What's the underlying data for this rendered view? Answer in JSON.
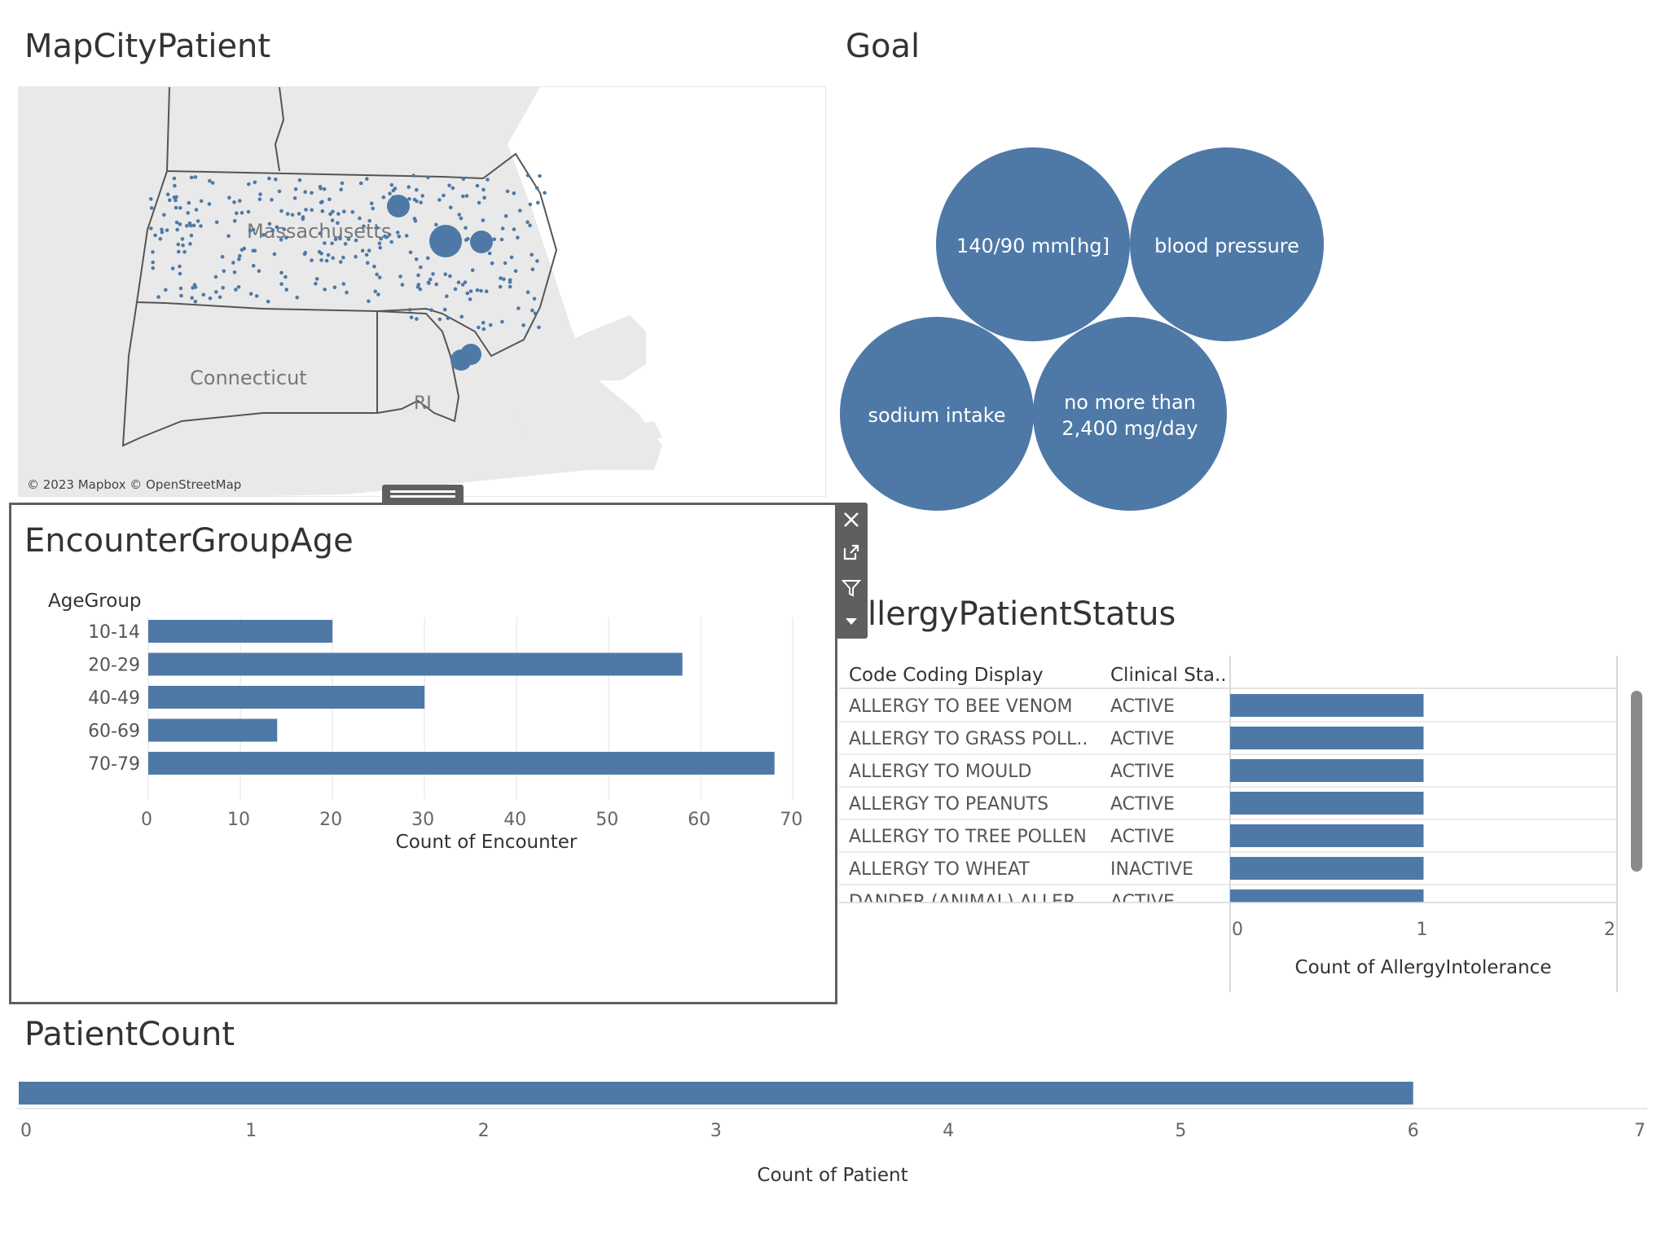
{
  "map": {
    "title": "MapCityPatient",
    "labels": {
      "ma": "Massachusetts",
      "ct": "Connecticut",
      "ri": "RI"
    },
    "attribution": "© 2023 Mapbox © OpenStreetMap"
  },
  "goal": {
    "title": "Goal",
    "bubbles": [
      "140/90 mm[hg]",
      "blood pressure",
      "sodium intake",
      "no more than",
      "2,400 mg/day"
    ]
  },
  "encounter": {
    "title": "EncounterGroupAge",
    "row_header": "AgeGroup",
    "xlabel": "Count of Encounter"
  },
  "allergy": {
    "title": "AllergyPatientStatus",
    "title_visible": "llergyPatientStatus",
    "col1_header": "Code Coding Display",
    "col2_header": "Clinical Sta..",
    "xlabel": "Count of AllergyIntolerance"
  },
  "patient": {
    "title": "PatientCount",
    "xlabel": "Count of Patient"
  },
  "chart_data": [
    {
      "type": "bar",
      "title": "EncounterGroupAge",
      "orientation": "horizontal",
      "categories": [
        "10-14",
        "20-29",
        "40-49",
        "60-69",
        "70-79"
      ],
      "values": [
        20,
        58,
        30,
        14,
        68
      ],
      "xlabel": "Count of Encounter",
      "ylabel": "AgeGroup",
      "xlim": [
        0,
        70
      ],
      "ticks": [
        0,
        10,
        20,
        30,
        40,
        50,
        60,
        70
      ]
    },
    {
      "type": "bar",
      "title": "AllergyPatientStatus",
      "orientation": "horizontal",
      "rows": [
        {
          "display": "ALLERGY TO BEE VENOM",
          "status": "ACTIVE",
          "value": 1
        },
        {
          "display": "ALLERGY TO GRASS POLL..",
          "status": "ACTIVE",
          "value": 1
        },
        {
          "display": "ALLERGY TO MOULD",
          "status": "ACTIVE",
          "value": 1
        },
        {
          "display": "ALLERGY TO PEANUTS",
          "status": "ACTIVE",
          "value": 1
        },
        {
          "display": "ALLERGY TO TREE POLLEN",
          "status": "ACTIVE",
          "value": 1
        },
        {
          "display": "ALLERGY TO WHEAT",
          "status": "INACTIVE",
          "value": 1
        },
        {
          "display": "DANDER (ANIMAL) ALLER..",
          "status": "ACTIVE",
          "value": 1
        }
      ],
      "xlabel": "Count of AllergyIntolerance",
      "xlim": [
        0,
        2
      ],
      "ticks": [
        0,
        1,
        2
      ]
    },
    {
      "type": "bar",
      "title": "PatientCount",
      "orientation": "horizontal",
      "values": [
        6
      ],
      "xlabel": "Count of Patient",
      "xlim": [
        0,
        7
      ],
      "ticks": [
        0,
        1,
        2,
        3,
        4,
        5,
        6,
        7
      ]
    }
  ],
  "colors": {
    "bar": "#4e79a7",
    "text": "#333333",
    "axis": "#d9d9d9"
  }
}
